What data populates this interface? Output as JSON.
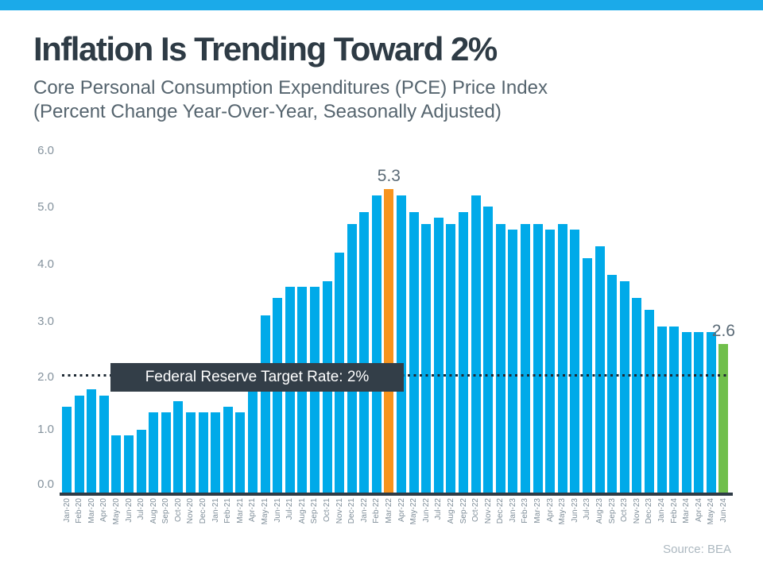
{
  "banner": {
    "color": "#1BAAE9"
  },
  "chart_data": {
    "type": "bar",
    "title": "Inflation Is Trending Toward 2%",
    "subtitle_line1": "Core Personal Consumption Expenditures (PCE) Price Index",
    "subtitle_line2": "(Percent Change Year-Over-Year, Seasonally Adjusted)",
    "xlabel": "",
    "ylabel": "",
    "ylim": [
      0,
      6
    ],
    "ytick_labels": [
      "0.0",
      "1.0",
      "2.0",
      "3.0",
      "4.0",
      "5.0",
      "6.0"
    ],
    "grid": false,
    "legend": "none",
    "bar_color": "#00AAE9",
    "categories": [
      "Jan-20",
      "Feb-20",
      "Mar-20",
      "Apr-20",
      "May-20",
      "Jun-20",
      "Jul-20",
      "Aug-20",
      "Sep-20",
      "Oct-20",
      "Nov-20",
      "Dec-20",
      "Jan-21",
      "Feb-21",
      "Mar-21",
      "Apr-21",
      "May-21",
      "Jun-21",
      "Jul-21",
      "Aug-21",
      "Sep-21",
      "Oct-21",
      "Nov-21",
      "Dec-21",
      "Jan-22",
      "Feb-22",
      "Mar-22",
      "Apr-22",
      "May-22",
      "Jun-22",
      "Jul-22",
      "Aug-22",
      "Sep-22",
      "Oct-22",
      "Nov-22",
      "Dec-22",
      "Jan-23",
      "Feb-23",
      "Mar-23",
      "Apr-23",
      "May-23",
      "Jun-23",
      "Jul-23",
      "Aug-23",
      "Sep-23",
      "Oct-23",
      "Nov-23",
      "Dec-23",
      "Jan-24",
      "Feb-24",
      "Mar-24",
      "Apr-24",
      "May-24",
      "Jun-24"
    ],
    "values": [
      1.5,
      1.7,
      1.8,
      1.7,
      1.0,
      1.0,
      1.1,
      1.4,
      1.4,
      1.6,
      1.4,
      1.4,
      1.4,
      1.5,
      1.4,
      2.0,
      3.1,
      3.4,
      3.6,
      3.6,
      3.6,
      3.7,
      4.2,
      4.7,
      4.9,
      5.2,
      5.3,
      5.2,
      4.9,
      4.7,
      4.8,
      4.7,
      4.9,
      5.2,
      5.0,
      4.7,
      4.6,
      4.7,
      4.7,
      4.6,
      4.7,
      4.6,
      4.1,
      4.3,
      3.8,
      3.7,
      3.4,
      3.2,
      2.9,
      2.9,
      2.8,
      2.8,
      2.8,
      2.6
    ],
    "highlights": [
      {
        "category": "Mar-22",
        "color": "#F7941E",
        "data_label": "5.3"
      },
      {
        "category": "Jun-24",
        "color": "#70BF4B",
        "data_label": "2.6"
      }
    ],
    "target_line": {
      "value": 2.0,
      "style": "dotted",
      "color": "#1E2933",
      "label": "Federal Reserve Target Rate: 2%",
      "label_bg": "#333E48",
      "label_text_color": "#FFFFFF"
    },
    "source": "Source: BEA"
  }
}
